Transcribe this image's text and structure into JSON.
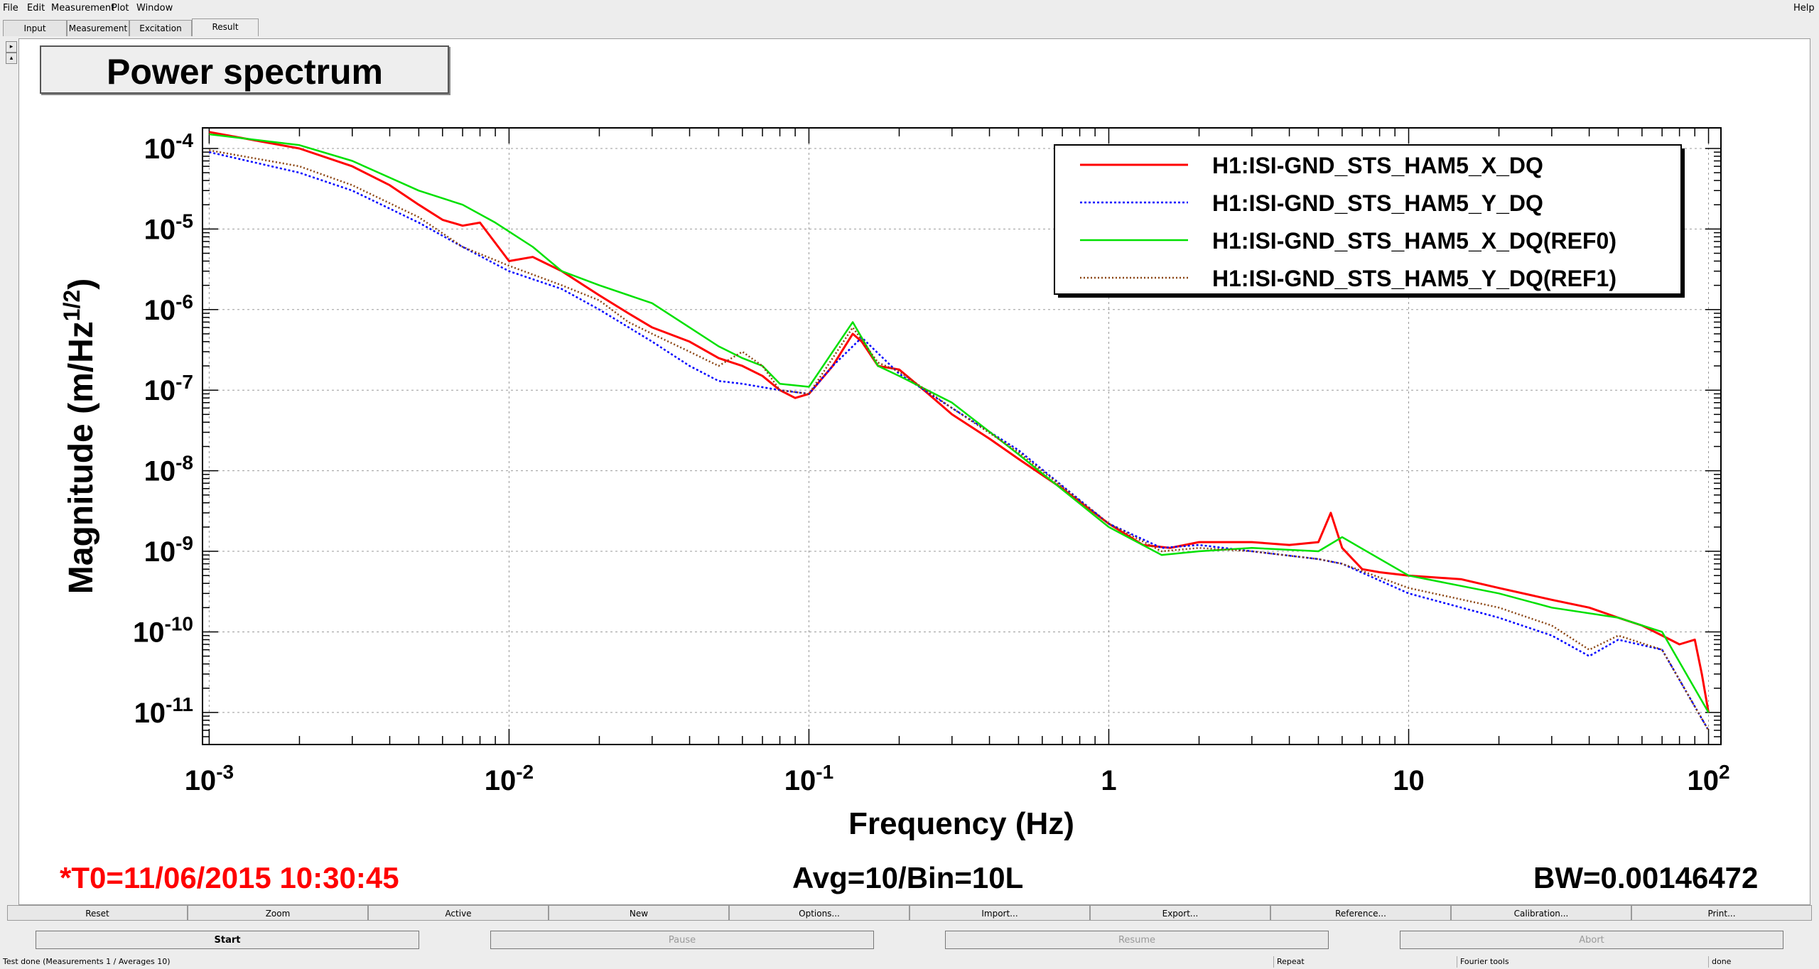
{
  "menu": [
    "File",
    "Edit",
    "Measurement",
    "Plot",
    "Window"
  ],
  "help": "Help",
  "tabs": [
    "Input",
    "Measurement",
    "Excitation",
    "Result"
  ],
  "active_tab": "Result",
  "plot_title": "Power spectrum",
  "chart_data": {
    "type": "line",
    "xlabel": "Frequency (Hz)",
    "ylabel": "Magnitude (m/Hz",
    "ylabel_sup": "1/2",
    "ylabel_close": ")",
    "xscale": "log",
    "yscale": "log",
    "xlim": [
      0.00095,
      110
    ],
    "ylim": [
      4e-12,
      0.00018
    ],
    "grid": true,
    "legend_position": "top-right",
    "x_ticks": [
      {
        "value": 0.001,
        "base": "10",
        "exp": "-3"
      },
      {
        "value": 0.01,
        "base": "10",
        "exp": "-2"
      },
      {
        "value": 0.1,
        "base": "10",
        "exp": "-1"
      },
      {
        "value": 1,
        "base": "1",
        "exp": ""
      },
      {
        "value": 10,
        "base": "10",
        "exp": ""
      },
      {
        "value": 100,
        "base": "10",
        "exp": "2"
      }
    ],
    "y_ticks": [
      {
        "value": 0.0001,
        "base": "10",
        "exp": "-4"
      },
      {
        "value": 1e-05,
        "base": "10",
        "exp": "-5"
      },
      {
        "value": 1e-06,
        "base": "10",
        "exp": "-6"
      },
      {
        "value": 1e-07,
        "base": "10",
        "exp": "-7"
      },
      {
        "value": 1e-08,
        "base": "10",
        "exp": "-8"
      },
      {
        "value": 1e-09,
        "base": "10",
        "exp": "-9"
      },
      {
        "value": 1e-10,
        "base": "10",
        "exp": "-10"
      },
      {
        "value": 1e-11,
        "base": "10",
        "exp": "-11"
      }
    ],
    "series": [
      {
        "name": "H1:ISI-GND_STS_HAM5_X_DQ",
        "color": "#ff0000",
        "dash": "",
        "width": 3,
        "x": [
          0.001,
          0.002,
          0.003,
          0.004,
          0.005,
          0.006,
          0.007,
          0.008,
          0.01,
          0.012,
          0.015,
          0.02,
          0.025,
          0.03,
          0.04,
          0.05,
          0.06,
          0.07,
          0.08,
          0.09,
          0.1,
          0.12,
          0.14,
          0.15,
          0.17,
          0.2,
          0.25,
          0.3,
          0.4,
          0.5,
          0.7,
          1,
          1.3,
          1.6,
          2,
          3,
          4,
          5,
          5.5,
          6,
          7,
          8,
          10,
          15,
          20,
          30,
          40,
          50,
          60,
          70,
          80,
          90,
          95,
          100
        ],
        "y": [
          0.00016,
          0.0001,
          6e-05,
          3.5e-05,
          2e-05,
          1.3e-05,
          1.1e-05,
          1.2e-05,
          4e-06,
          4.5e-06,
          3e-06,
          1.5e-06,
          9e-07,
          6e-07,
          4e-07,
          2.5e-07,
          2e-07,
          1.5e-07,
          1e-07,
          8e-08,
          9e-08,
          2e-07,
          5e-07,
          4e-07,
          2e-07,
          1.8e-07,
          9e-08,
          5e-08,
          2.5e-08,
          1.4e-08,
          6e-09,
          2.2e-09,
          1.2e-09,
          1.1e-09,
          1.3e-09,
          1.3e-09,
          1.2e-09,
          1.3e-09,
          3e-09,
          1.1e-09,
          6e-10,
          5.5e-10,
          5e-10,
          4.5e-10,
          3.5e-10,
          2.5e-10,
          2e-10,
          1.5e-10,
          1.2e-10,
          9e-11,
          7e-11,
          8e-11,
          3e-11,
          1e-11
        ]
      },
      {
        "name": "H1:ISI-GND_STS_HAM5_Y_DQ",
        "color": "#0000ff",
        "dash": "3,3",
        "width": 2.5,
        "x": [
          0.001,
          0.002,
          0.003,
          0.005,
          0.007,
          0.01,
          0.015,
          0.02,
          0.03,
          0.04,
          0.05,
          0.06,
          0.08,
          0.1,
          0.12,
          0.15,
          0.2,
          0.3,
          0.5,
          1,
          1.5,
          2,
          3,
          5,
          6,
          10,
          20,
          30,
          40,
          50,
          70,
          100
        ],
        "y": [
          9e-05,
          5e-05,
          3e-05,
          1.2e-05,
          6e-06,
          3e-06,
          1.8e-06,
          1e-06,
          4e-07,
          2e-07,
          1.3e-07,
          1.2e-07,
          1e-07,
          9e-08,
          2e-07,
          4.5e-07,
          1.6e-07,
          6e-08,
          1.8e-08,
          2.2e-09,
          1.1e-09,
          1.2e-09,
          1e-09,
          8e-10,
          7e-10,
          3e-10,
          1.5e-10,
          9e-11,
          5e-11,
          8e-11,
          6e-11,
          6e-12
        ]
      },
      {
        "name": "H1:ISI-GND_STS_HAM5_X_DQ(REF0)",
        "color": "#00e000",
        "dash": "",
        "width": 2.5,
        "x": [
          0.001,
          0.002,
          0.003,
          0.005,
          0.007,
          0.009,
          0.012,
          0.015,
          0.02,
          0.03,
          0.04,
          0.05,
          0.06,
          0.07,
          0.08,
          0.1,
          0.12,
          0.14,
          0.17,
          0.2,
          0.3,
          0.5,
          1,
          1.5,
          2,
          3,
          5,
          6,
          10,
          20,
          30,
          50,
          70,
          100
        ],
        "y": [
          0.00015,
          0.00011,
          7e-05,
          3e-05,
          2e-05,
          1.2e-05,
          6e-06,
          3e-06,
          2e-06,
          1.2e-06,
          6e-07,
          3.5e-07,
          2.5e-07,
          2e-07,
          1.2e-07,
          1.1e-07,
          3e-07,
          7e-07,
          2e-07,
          1.5e-07,
          7e-08,
          1.6e-08,
          2e-09,
          9e-10,
          1e-09,
          1.1e-09,
          1e-09,
          1.5e-09,
          5e-10,
          3e-10,
          2e-10,
          1.5e-10,
          1e-10,
          1e-11
        ]
      },
      {
        "name": "H1:ISI-GND_STS_HAM5_Y_DQ(REF1)",
        "color": "#8b4513",
        "dash": "2,3",
        "width": 2.5,
        "x": [
          0.001,
          0.002,
          0.003,
          0.005,
          0.007,
          0.01,
          0.015,
          0.02,
          0.025,
          0.03,
          0.04,
          0.05,
          0.06,
          0.07,
          0.08,
          0.1,
          0.12,
          0.14,
          0.17,
          0.2,
          0.3,
          0.5,
          1,
          1.5,
          2,
          3,
          5,
          6,
          10,
          20,
          30,
          40,
          50,
          70,
          100
        ],
        "y": [
          9.5e-05,
          6e-05,
          3.5e-05,
          1.4e-05,
          6e-06,
          3.5e-06,
          2e-06,
          1.3e-06,
          7e-07,
          5e-07,
          3e-07,
          2e-07,
          3e-07,
          2e-07,
          1e-07,
          9e-08,
          2.5e-07,
          6e-07,
          2.2e-07,
          1.7e-07,
          6e-08,
          1.7e-08,
          2.2e-09,
          1e-09,
          1.1e-09,
          1e-09,
          8e-10,
          7e-10,
          3.5e-10,
          2e-10,
          1.2e-10,
          6e-11,
          9e-11,
          6e-11,
          6e-12
        ]
      }
    ]
  },
  "info": {
    "t0": "*T0=11/06/2015 10:30:45",
    "avg": "Avg=10/Bin=10L",
    "bw": "BW=0.00146472"
  },
  "buttons_row1": [
    "Reset",
    "Zoom",
    "Active",
    "New",
    "Options...",
    "Import...",
    "Export...",
    "Reference...",
    "Calibration...",
    "Print..."
  ],
  "buttons_row2": [
    {
      "label": "Start",
      "enabled": true
    },
    {
      "label": "Pause",
      "enabled": false
    },
    {
      "label": "Resume",
      "enabled": false
    },
    {
      "label": "Abort",
      "enabled": false
    }
  ],
  "status": [
    "Test done (Measurements 1 / Averages 10)",
    "Repeat",
    "Fourier tools",
    "done"
  ]
}
